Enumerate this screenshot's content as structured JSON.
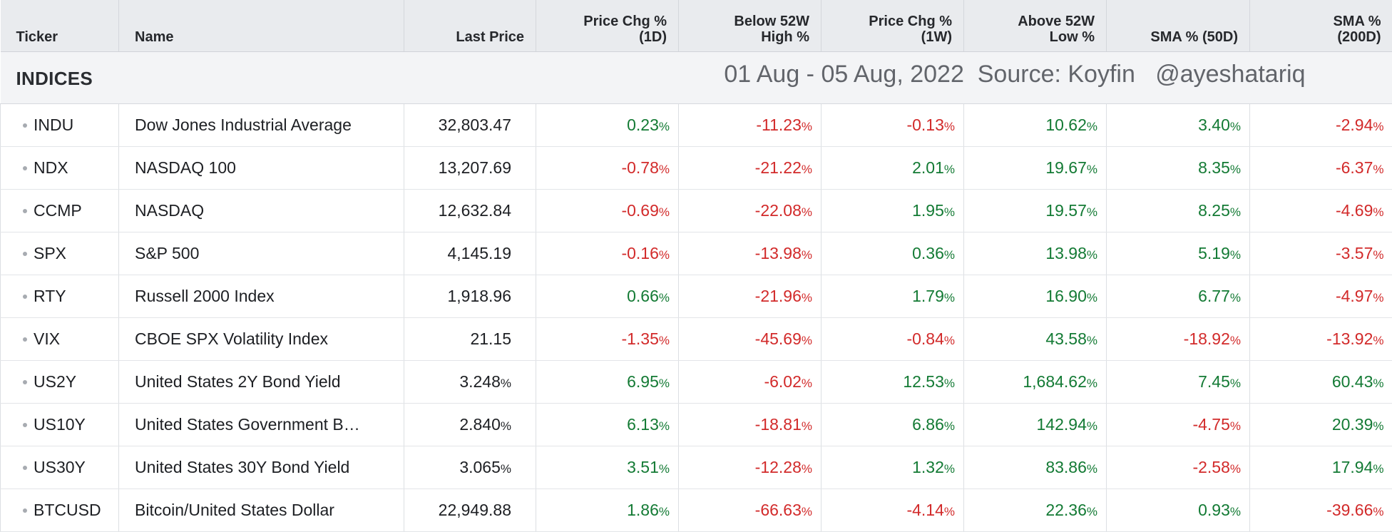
{
  "columns": {
    "ticker": "Ticker",
    "name": "Name",
    "last_price": "Last Price",
    "chg_1d_l1": "Price Chg %",
    "chg_1d_l2": "(1D)",
    "below_52w_l1": "Below 52W",
    "below_52w_l2": "High %",
    "chg_1w_l1": "Price Chg %",
    "chg_1w_l2": "(1W)",
    "above_52w_l1": "Above 52W",
    "above_52w_l2": "Low %",
    "sma50": "SMA % (50D)",
    "sma200_l1": "SMA %",
    "sma200_l2": "(200D)"
  },
  "section": {
    "label": "INDICES",
    "overlay_text": "01 Aug - 05 Aug, 2022  Source: Koyfin   @ayeshatariq"
  },
  "percent_symbol": "%",
  "colors": {
    "positive": "#137a34",
    "negative": "#d22a2a",
    "header_bg": "#e9ebee"
  },
  "rows": [
    {
      "ticker": "INDU",
      "name": "Dow Jones Industrial Average",
      "last_price": "32,803.47",
      "price_pct": false,
      "chg_1d": "0.23",
      "below_52w": "-11.23",
      "chg_1w": "-0.13",
      "above_52w": "10.62",
      "sma50": "3.40",
      "sma200": "-2.94"
    },
    {
      "ticker": "NDX",
      "name": "NASDAQ 100",
      "last_price": "13,207.69",
      "price_pct": false,
      "chg_1d": "-0.78",
      "below_52w": "-21.22",
      "chg_1w": "2.01",
      "above_52w": "19.67",
      "sma50": "8.35",
      "sma200": "-6.37"
    },
    {
      "ticker": "CCMP",
      "name": "NASDAQ",
      "last_price": "12,632.84",
      "price_pct": false,
      "chg_1d": "-0.69",
      "below_52w": "-22.08",
      "chg_1w": "1.95",
      "above_52w": "19.57",
      "sma50": "8.25",
      "sma200": "-4.69"
    },
    {
      "ticker": "SPX",
      "name": "S&P 500",
      "last_price": "4,145.19",
      "price_pct": false,
      "chg_1d": "-0.16",
      "below_52w": "-13.98",
      "chg_1w": "0.36",
      "above_52w": "13.98",
      "sma50": "5.19",
      "sma200": "-3.57"
    },
    {
      "ticker": "RTY",
      "name": "Russell 2000 Index",
      "last_price": "1,918.96",
      "price_pct": false,
      "chg_1d": "0.66",
      "below_52w": "-21.96",
      "chg_1w": "1.79",
      "above_52w": "16.90",
      "sma50": "6.77",
      "sma200": "-4.97"
    },
    {
      "ticker": "VIX",
      "name": "CBOE SPX Volatility Index",
      "last_price": "21.15",
      "price_pct": false,
      "chg_1d": "-1.35",
      "below_52w": "-45.69",
      "chg_1w": "-0.84",
      "above_52w": "43.58",
      "sma50": "-18.92",
      "sma200": "-13.92"
    },
    {
      "ticker": "US2Y",
      "name": "United States 2Y Bond Yield",
      "last_price": "3.248",
      "price_pct": true,
      "chg_1d": "6.95",
      "below_52w": "-6.02",
      "chg_1w": "12.53",
      "above_52w": "1,684.62",
      "sma50": "7.45",
      "sma200": "60.43"
    },
    {
      "ticker": "US10Y",
      "name": "United States Government B…",
      "last_price": "2.840",
      "price_pct": true,
      "chg_1d": "6.13",
      "below_52w": "-18.81",
      "chg_1w": "6.86",
      "above_52w": "142.94",
      "sma50": "-4.75",
      "sma200": "20.39"
    },
    {
      "ticker": "US30Y",
      "name": "United States 30Y Bond Yield",
      "last_price": "3.065",
      "price_pct": true,
      "chg_1d": "3.51",
      "below_52w": "-12.28",
      "chg_1w": "1.32",
      "above_52w": "83.86",
      "sma50": "-2.58",
      "sma200": "17.94"
    },
    {
      "ticker": "BTCUSD",
      "name": "Bitcoin/United States Dollar",
      "last_price": "22,949.88",
      "price_pct": false,
      "chg_1d": "1.86",
      "below_52w": "-66.63",
      "chg_1w": "-4.14",
      "above_52w": "22.36",
      "sma50": "0.93",
      "sma200": "-39.66"
    }
  ]
}
